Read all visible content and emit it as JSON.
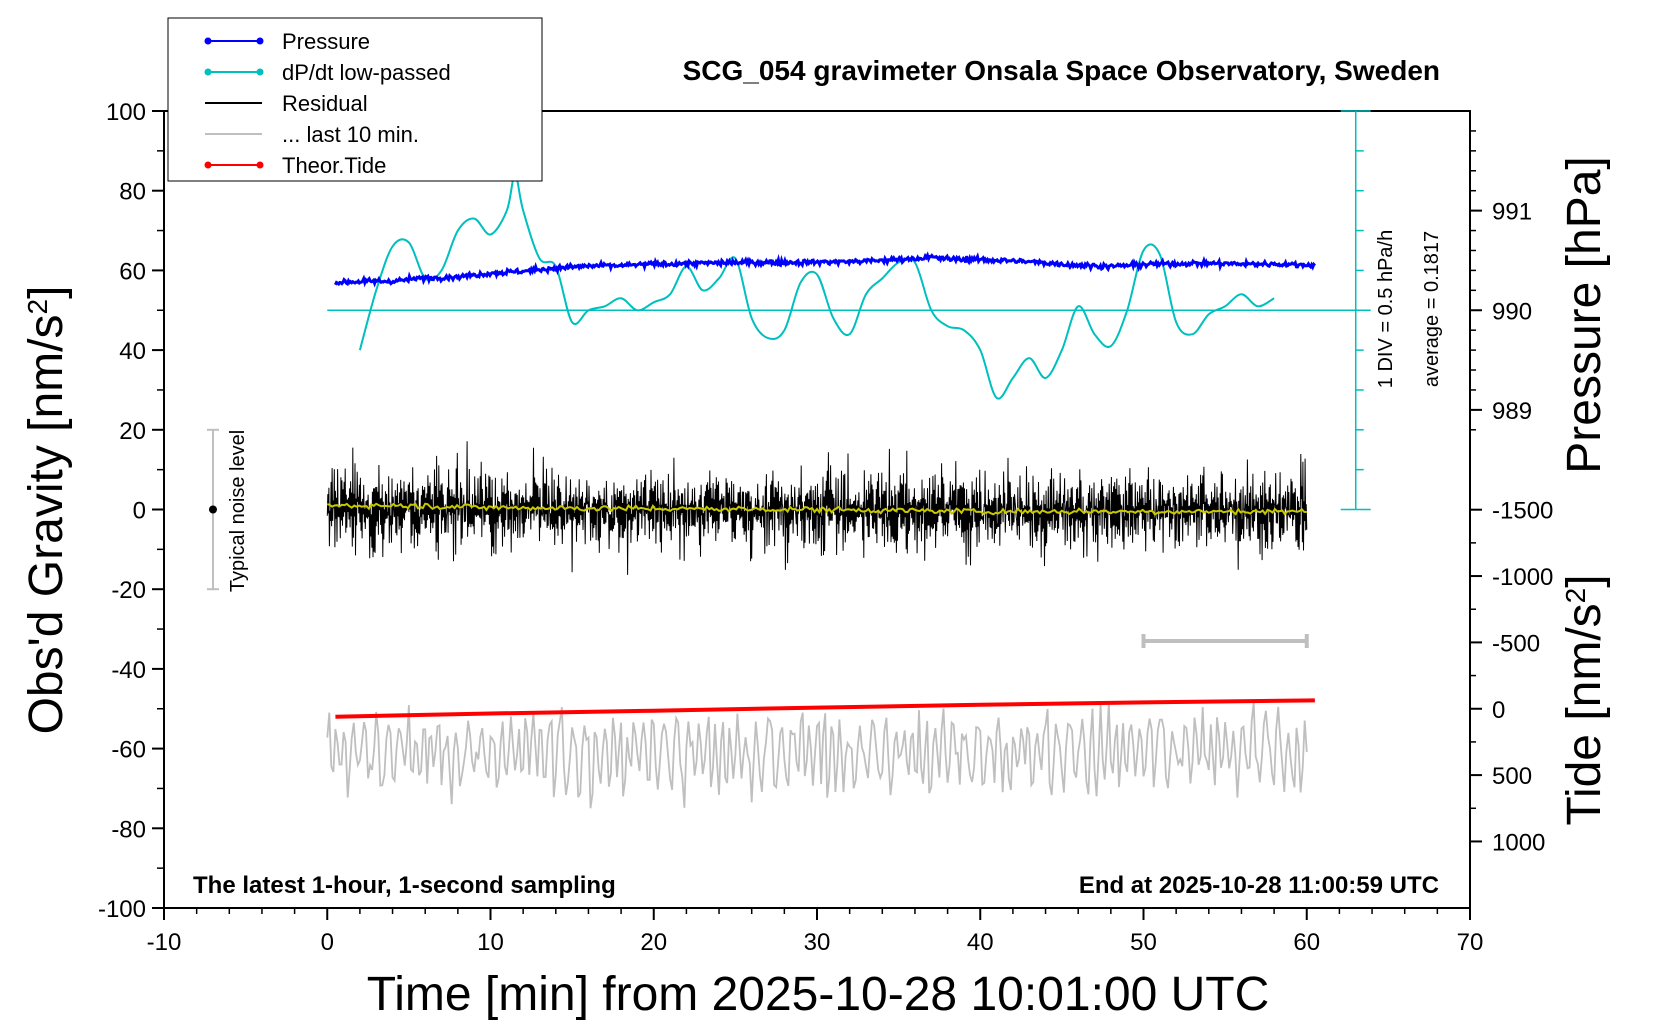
{
  "chart_data": {
    "type": "line",
    "title": "SCG_054 gravimeter Onsala Space Observatory, Sweden",
    "xlabel": "Time [min] from 2025-10-28 10:01:00 UTC",
    "ylabel_left": "Obs'd Gravity [nm/s",
    "ylabel_left_sup": "2",
    "ylabel_left_end": "]",
    "ylabel_right_pressure": "Pressure [hPa]",
    "ylabel_right_tide": "Tide [nm/s",
    "ylabel_right_tide_sup": "2",
    "ylabel_right_tide_end": "]",
    "xlim": [
      -10,
      70
    ],
    "ylim_left": [
      -100,
      100
    ],
    "xticks": [
      -10,
      0,
      10,
      20,
      30,
      40,
      50,
      60,
      70
    ],
    "yticks_left": [
      -100,
      -80,
      -60,
      -40,
      -20,
      0,
      20,
      40,
      60,
      80,
      100
    ],
    "pressure_axis": {
      "ticks": [
        989,
        990,
        991
      ],
      "left_at_990": 50,
      "left_per_hpa": 25
    },
    "tide_axis": {
      "ticks": [
        -1500,
        -1000,
        -500,
        0,
        500,
        1000
      ],
      "left_at_0": -50,
      "left_per_1000": -33.3
    },
    "legend": {
      "position": "top-left",
      "entries": [
        {
          "label": "Pressure",
          "color": "#0000ff",
          "marker": true
        },
        {
          "label": "dP/dt low-passed",
          "color": "#00bfbf",
          "marker": true
        },
        {
          "label": "Residual",
          "color": "#000000",
          "marker": false
        },
        {
          "label": "... last 10 min.",
          "color": "#bfbfbf",
          "marker": false
        },
        {
          "label": "Theor.Tide",
          "color": "#ff0000",
          "marker": true
        }
      ]
    },
    "annotations": {
      "bottom_left": "The latest 1-hour, 1-second sampling",
      "bottom_right": "End at 2025-10-28 11:00:59 UTC",
      "noise_label": "Typical noise level",
      "dpdt_scale": "1 DIV = 0.5 hPa/h",
      "dpdt_average": "average = 0.1817"
    },
    "noise_bar": {
      "x": -7,
      "y_low": -20,
      "y_high": 20,
      "center": 0
    },
    "grey_bar": {
      "x_start": 50,
      "x_end": 60,
      "y": -33
    },
    "dpdt_scale_axis": {
      "x": 63,
      "y_bottom": 0,
      "y_top": 100,
      "div_step": 10
    },
    "dpdt_baseline": 50,
    "series": [
      {
        "name": "Pressure",
        "color": "#0000ff",
        "x": [
          0.5,
          2,
          4,
          6,
          8,
          10,
          12,
          14,
          16,
          18,
          20,
          22,
          24,
          26,
          28,
          30,
          32,
          34,
          36,
          37,
          38,
          40,
          42,
          44,
          46,
          48,
          50,
          52,
          54,
          56,
          58,
          60.5
        ],
        "y": [
          57,
          57.2,
          57.3,
          58.1,
          58.4,
          59.3,
          59.8,
          60.6,
          61.1,
          61.2,
          61.6,
          61.7,
          61.9,
          62.0,
          62.0,
          62.1,
          62.2,
          62.5,
          63.0,
          63.3,
          62.9,
          62.7,
          62.4,
          61.9,
          61.3,
          61.0,
          61.5,
          61.7,
          61.8,
          61.6,
          61.6,
          61.3
        ]
      },
      {
        "name": "dP/dt low-passed",
        "color": "#00bfbf",
        "x": [
          2,
          3,
          4,
          5,
          6,
          7,
          8,
          9,
          10,
          11,
          11.5,
          12,
          13,
          14,
          15,
          16,
          17,
          18,
          19,
          20,
          21,
          22,
          23,
          24,
          25,
          26,
          27,
          28,
          29,
          30,
          31,
          32,
          33,
          34,
          35,
          36,
          37,
          38,
          39,
          40,
          41,
          42,
          43,
          44,
          45,
          46,
          47,
          48,
          49,
          50,
          51,
          52,
          53,
          54,
          55,
          56,
          57,
          58
        ],
        "y": [
          40,
          55,
          66,
          67,
          58,
          60,
          70,
          73,
          69,
          75,
          84,
          75,
          63,
          61,
          47,
          50,
          51,
          53,
          50,
          52,
          54,
          61,
          55,
          58,
          63,
          48,
          43,
          45,
          57,
          59,
          48,
          44,
          54,
          58,
          62,
          62,
          50,
          46,
          45,
          40,
          28,
          33,
          38,
          33,
          40,
          51,
          44,
          41,
          50,
          65,
          64,
          47,
          44,
          49,
          51,
          54,
          51,
          53
        ]
      },
      {
        "name": "Residual",
        "color": "#000000",
        "x_range": [
          0,
          60
        ],
        "amplitude": 7,
        "peak_range": [
          -22,
          23
        ]
      },
      {
        "name": "Residual (smoothed)",
        "color": "#c8c800",
        "x": [
          0,
          5,
          10,
          20,
          30,
          40,
          50,
          60
        ],
        "y": [
          1,
          1,
          0.5,
          0.2,
          0,
          -0.5,
          -0.5,
          -0.5
        ]
      },
      {
        "name": "... last 10 min.",
        "color": "#bfbfbf",
        "x_range": [
          0,
          60
        ],
        "center": -61,
        "peak_range": [
          -83,
          -44
        ]
      },
      {
        "name": "Theor.Tide",
        "color": "#ff0000",
        "x": [
          0.5,
          10,
          20,
          30,
          40,
          50,
          60.5
        ],
        "y": [
          -52,
          -51.2,
          -50.5,
          -49.7,
          -49.0,
          -48.4,
          -47.9
        ]
      }
    ]
  }
}
